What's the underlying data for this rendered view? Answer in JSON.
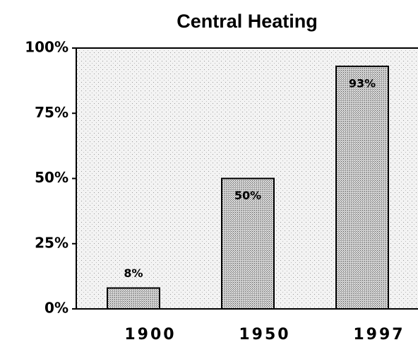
{
  "chart_data": {
    "type": "bar",
    "title": "Central Heating",
    "categories": [
      "1900",
      "1950",
      "1997"
    ],
    "values": [
      8,
      50,
      93
    ],
    "value_labels": [
      "8%",
      "50%",
      "93%"
    ],
    "ylim": [
      0,
      100
    ],
    "yticks": [
      {
        "value": 0,
        "label": "0%"
      },
      {
        "value": 25,
        "label": "25%"
      },
      {
        "value": 50,
        "label": "50%"
      },
      {
        "value": 75,
        "label": "75%"
      },
      {
        "value": 100,
        "label": "100%"
      }
    ],
    "color": "#b8b8b8"
  }
}
